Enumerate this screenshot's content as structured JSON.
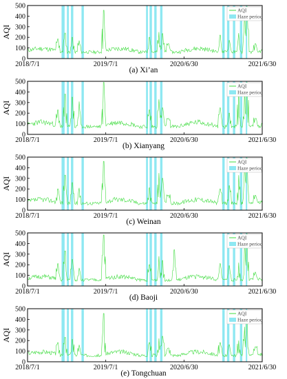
{
  "colors": {
    "aqi": "#3fdc3f",
    "haze": "#8ee8f2",
    "axis": "#000000"
  },
  "chart_data": [
    {
      "type": "line",
      "caption": "(a) Xi’an",
      "ylabel": "AQI",
      "ylim": [
        0,
        500
      ],
      "yticks": [
        "0",
        "100",
        "200",
        "300",
        "400",
        "500"
      ],
      "xticks": [
        "2018/7/1",
        "2019/7/1",
        "2020/6/30",
        "2021/6/30"
      ],
      "legend": {
        "line": "AQI",
        "haze": "Haze period",
        "placement": "top-right"
      },
      "series": [
        {
          "name": "AQI",
          "baseline": 75,
          "noise": 30,
          "seed": 11,
          "peaks": [
            [
              0.13,
              185
            ],
            [
              0.16,
              240
            ],
            [
              0.19,
              200
            ],
            [
              0.22,
              170
            ],
            [
              0.325,
              455
            ],
            [
              0.52,
              200
            ],
            [
              0.56,
              250
            ],
            [
              0.575,
              235
            ],
            [
              0.6,
              140
            ],
            [
              0.82,
              220
            ],
            [
              0.86,
              170
            ],
            [
              0.9,
              240
            ],
            [
              0.925,
              455
            ],
            [
              0.935,
              490
            ],
            [
              0.97,
              140
            ]
          ]
        }
      ],
      "haze_periods": [
        [
          0.145,
          0.158
        ],
        [
          0.168,
          0.176
        ],
        [
          0.185,
          0.195
        ],
        [
          0.23,
          0.24
        ],
        [
          0.505,
          0.513
        ],
        [
          0.52,
          0.53
        ],
        [
          0.54,
          0.55
        ],
        [
          0.565,
          0.575
        ],
        [
          0.83,
          0.84
        ],
        [
          0.85,
          0.86
        ],
        [
          0.875,
          0.885
        ],
        [
          0.905,
          0.915
        ],
        [
          0.93,
          0.936
        ]
      ]
    },
    {
      "type": "line",
      "caption": "(b) Xianyang",
      "ylabel": "AQI",
      "ylim": [
        0,
        500
      ],
      "yticks": [
        "0",
        "100",
        "200",
        "300",
        "400",
        "500"
      ],
      "xticks": [
        "2018/7/1",
        "2019/7/1",
        "2020/6/30",
        "2021/6/30"
      ],
      "legend": {
        "line": "AQI",
        "haze": "Haze period",
        "placement": "top-right"
      },
      "series": [
        {
          "name": "AQI",
          "baseline": 90,
          "noise": 35,
          "seed": 23,
          "peaks": [
            [
              0.13,
              230
            ],
            [
              0.16,
              380
            ],
            [
              0.19,
              350
            ],
            [
              0.22,
              310
            ],
            [
              0.325,
              490
            ],
            [
              0.52,
              230
            ],
            [
              0.56,
              330
            ],
            [
              0.575,
              250
            ],
            [
              0.6,
              150
            ],
            [
              0.82,
              250
            ],
            [
              0.86,
              200
            ],
            [
              0.9,
              450
            ],
            [
              0.925,
              470
            ],
            [
              0.935,
              490
            ],
            [
              0.97,
              150
            ]
          ]
        }
      ],
      "haze_periods": [
        [
          0.145,
          0.158
        ],
        [
          0.168,
          0.176
        ],
        [
          0.185,
          0.195
        ],
        [
          0.23,
          0.24
        ],
        [
          0.505,
          0.513
        ],
        [
          0.52,
          0.53
        ],
        [
          0.54,
          0.55
        ],
        [
          0.565,
          0.575
        ],
        [
          0.83,
          0.84
        ],
        [
          0.85,
          0.86
        ],
        [
          0.875,
          0.885
        ],
        [
          0.905,
          0.915
        ],
        [
          0.93,
          0.936
        ]
      ]
    },
    {
      "type": "line",
      "caption": "(c) Weinan",
      "ylabel": "AQI",
      "ylim": [
        0,
        500
      ],
      "yticks": [
        "0",
        "100",
        "200",
        "300",
        "400",
        "500"
      ],
      "xticks": [
        "2018/7/1",
        "2019/7/1",
        "2020/6/30",
        "2021/6/30"
      ],
      "legend": {
        "line": "AQI",
        "haze": "Haze period",
        "placement": "top-right"
      },
      "series": [
        {
          "name": "AQI",
          "baseline": 80,
          "noise": 32,
          "seed": 37,
          "peaks": [
            [
              0.13,
              200
            ],
            [
              0.16,
              330
            ],
            [
              0.19,
              260
            ],
            [
              0.22,
              210
            ],
            [
              0.325,
              460
            ],
            [
              0.52,
              210
            ],
            [
              0.56,
              350
            ],
            [
              0.575,
              300
            ],
            [
              0.6,
              140
            ],
            [
              0.82,
              200
            ],
            [
              0.86,
              230
            ],
            [
              0.9,
              330
            ],
            [
              0.925,
              470
            ],
            [
              0.935,
              490
            ],
            [
              0.97,
              140
            ]
          ]
        }
      ],
      "haze_periods": [
        [
          0.145,
          0.158
        ],
        [
          0.168,
          0.176
        ],
        [
          0.185,
          0.195
        ],
        [
          0.23,
          0.24
        ],
        [
          0.505,
          0.513
        ],
        [
          0.52,
          0.53
        ],
        [
          0.54,
          0.55
        ],
        [
          0.565,
          0.575
        ],
        [
          0.83,
          0.84
        ],
        [
          0.85,
          0.86
        ],
        [
          0.875,
          0.885
        ],
        [
          0.905,
          0.915
        ],
        [
          0.93,
          0.936
        ]
      ]
    },
    {
      "type": "line",
      "caption": "(d) Baoji",
      "ylabel": "AQI",
      "ylim": [
        0,
        500
      ],
      "yticks": [
        "0",
        "100",
        "200",
        "300",
        "400",
        "500"
      ],
      "xticks": [
        "2018/7/1",
        "2019/7/1",
        "2020/6/30",
        "2021/6/30"
      ],
      "legend": {
        "line": "AQI",
        "haze": "Haze period",
        "placement": "top-right"
      },
      "series": [
        {
          "name": "AQI",
          "baseline": 70,
          "noise": 28,
          "seed": 51,
          "peaks": [
            [
              0.13,
              210
            ],
            [
              0.16,
              330
            ],
            [
              0.19,
              250
            ],
            [
              0.22,
              170
            ],
            [
              0.325,
              480
            ],
            [
              0.52,
              200
            ],
            [
              0.56,
              280
            ],
            [
              0.575,
              240
            ],
            [
              0.625,
              340
            ],
            [
              0.82,
              210
            ],
            [
              0.86,
              190
            ],
            [
              0.9,
              220
            ],
            [
              0.925,
              470
            ],
            [
              0.935,
              490
            ],
            [
              0.97,
              130
            ]
          ]
        }
      ],
      "haze_periods": [
        [
          0.145,
          0.158
        ],
        [
          0.168,
          0.176
        ],
        [
          0.185,
          0.195
        ],
        [
          0.23,
          0.24
        ],
        [
          0.505,
          0.513
        ],
        [
          0.52,
          0.53
        ],
        [
          0.54,
          0.55
        ],
        [
          0.565,
          0.575
        ],
        [
          0.83,
          0.84
        ],
        [
          0.85,
          0.86
        ],
        [
          0.875,
          0.885
        ],
        [
          0.905,
          0.915
        ],
        [
          0.93,
          0.936
        ]
      ]
    },
    {
      "type": "line",
      "caption": "(e) Tongchuan",
      "ylabel": "AQI",
      "ylim": [
        0,
        500
      ],
      "yticks": [
        "0",
        "100",
        "200",
        "300",
        "400",
        "500"
      ],
      "xticks": [
        "2018/7/1",
        "2019/7/1",
        "2020/6/30",
        "2021/6/30"
      ],
      "legend": {
        "line": "AQI",
        "haze": "Haze period",
        "placement": "top-right"
      },
      "series": [
        {
          "name": "AQI",
          "baseline": 75,
          "noise": 28,
          "seed": 67,
          "peaks": [
            [
              0.13,
              180
            ],
            [
              0.16,
              230
            ],
            [
              0.19,
              210
            ],
            [
              0.22,
              160
            ],
            [
              0.325,
              455
            ],
            [
              0.52,
              180
            ],
            [
              0.56,
              220
            ],
            [
              0.575,
              240
            ],
            [
              0.6,
              130
            ],
            [
              0.82,
              180
            ],
            [
              0.86,
              160
            ],
            [
              0.9,
              200
            ],
            [
              0.925,
              330
            ],
            [
              0.935,
              470
            ],
            [
              0.97,
              140
            ]
          ]
        }
      ],
      "haze_periods": [
        [
          0.145,
          0.158
        ],
        [
          0.168,
          0.176
        ],
        [
          0.185,
          0.195
        ],
        [
          0.23,
          0.24
        ],
        [
          0.505,
          0.513
        ],
        [
          0.52,
          0.53
        ],
        [
          0.54,
          0.55
        ],
        [
          0.565,
          0.575
        ],
        [
          0.83,
          0.84
        ],
        [
          0.85,
          0.86
        ],
        [
          0.875,
          0.885
        ],
        [
          0.905,
          0.915
        ],
        [
          0.93,
          0.936
        ]
      ]
    }
  ]
}
